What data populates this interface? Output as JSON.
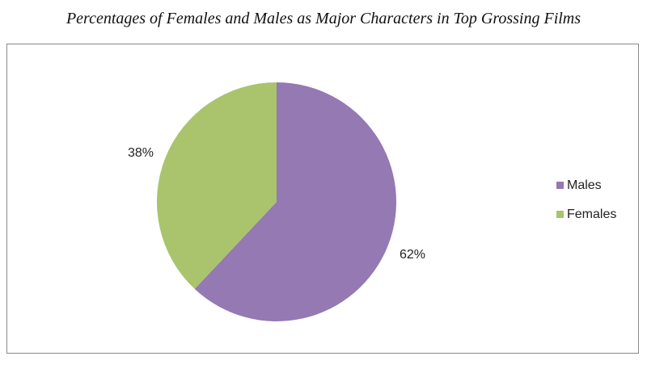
{
  "chart_data": {
    "type": "pie",
    "title": "Percentages of Females and Males as Major Characters in Top Grossing Films",
    "categories": [
      "Males",
      "Females"
    ],
    "values": [
      62,
      38
    ],
    "data_labels": [
      "62%",
      "38%"
    ],
    "colors": [
      "#9479b3",
      "#a9c46c"
    ],
    "legend_position": "right"
  }
}
